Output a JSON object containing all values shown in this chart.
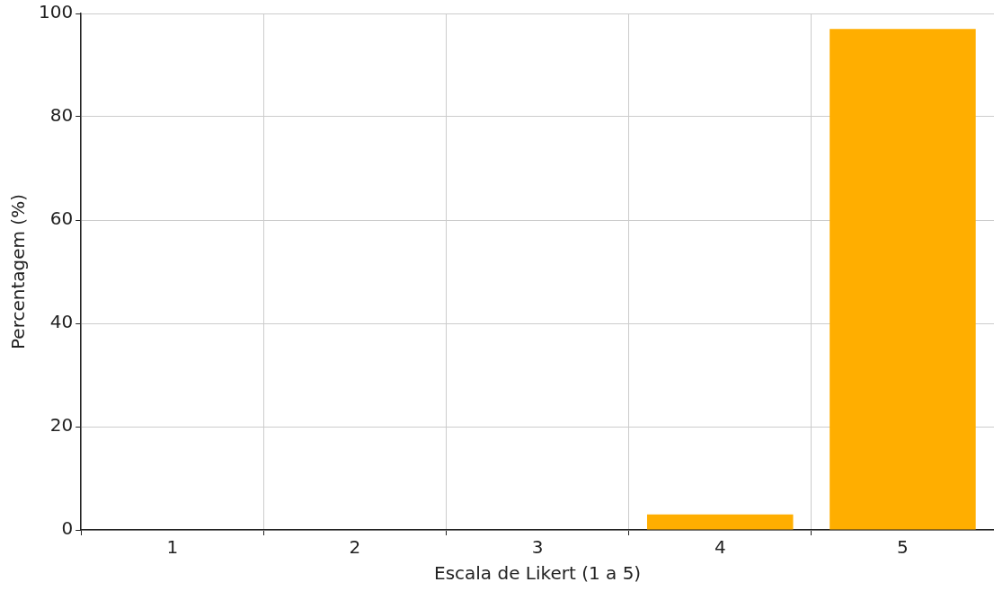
{
  "chart_data": {
    "type": "bar",
    "xlabel": "Escala de Likert (1 a 5)",
    "ylabel": "Percentagem (%)",
    "categories": [
      "1",
      "2",
      "3",
      "4",
      "5"
    ],
    "values": [
      0,
      0,
      0,
      3,
      97
    ],
    "color": "#ffae00",
    "ylim": [
      0,
      100
    ],
    "yticks": [
      0,
      20,
      40,
      60,
      80,
      100
    ],
    "grid": true,
    "legend": false
  }
}
